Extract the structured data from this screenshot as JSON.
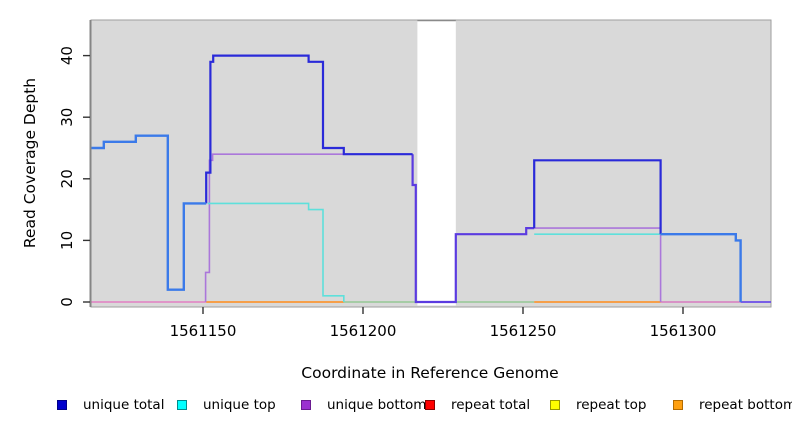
{
  "chart_data": {
    "type": "step-line",
    "title": "",
    "xlabel": "Coordinate in Reference Genome",
    "ylabel": "Read Coverage Depth",
    "xlim": [
      1561115,
      1561327.5
    ],
    "ylim": [
      0,
      45.8
    ],
    "xticks": [
      1561150,
      1561200,
      1561250,
      1561300
    ],
    "yticks": [
      0,
      10,
      20,
      30,
      40
    ],
    "grid": false,
    "panel_bg": "#d9d9d9",
    "panel_border": "#9e9e9e",
    "masked_region": {
      "from": 1561217,
      "to": 1561229,
      "color": "#ffffff",
      "cap_color": "#8a8a8a"
    },
    "legend_position": "bottom",
    "legend": [
      {
        "label": "unique total",
        "color": "#0000cc",
        "border": "#000088"
      },
      {
        "label": "unique top",
        "color": "#00ffff",
        "border": "#008b8b"
      },
      {
        "label": "unique bottom",
        "color": "#9b30d0",
        "border": "#6a1b90"
      },
      {
        "label": "repeat total",
        "color": "#ff0000",
        "border": "#8b0000"
      },
      {
        "label": "repeat top",
        "color": "#ffff00",
        "border": "#999900"
      },
      {
        "label": "repeat bottom",
        "color": "#ffa010",
        "border": "#b36b00"
      }
    ],
    "series": [
      {
        "name": "unique total",
        "steps": [
          [
            1561115,
            25
          ],
          [
            1561119,
            26
          ],
          [
            1561129,
            27
          ],
          [
            1561139,
            2
          ],
          [
            1561144,
            16
          ],
          [
            1561151,
            21
          ],
          [
            1561152,
            39
          ],
          [
            1561153,
            40
          ],
          [
            1561183,
            39
          ],
          [
            1561188,
            25
          ],
          [
            1561194,
            24
          ],
          [
            1561216,
            19
          ],
          [
            1561217,
            0
          ],
          [
            1561229,
            11
          ],
          [
            1561251,
            12
          ],
          [
            1561254,
            23
          ],
          [
            1561293,
            11
          ],
          [
            1561317,
            10
          ],
          [
            1561318,
            0
          ]
        ]
      },
      {
        "name": "unique top",
        "steps": [
          [
            1561115,
            0
          ],
          [
            1561151,
            16
          ],
          [
            1561183,
            15
          ],
          [
            1561188,
            1
          ],
          [
            1561194,
            0
          ],
          [
            1561254,
            11
          ],
          [
            1561318,
            0
          ]
        ]
      },
      {
        "name": "unique bottom",
        "steps": [
          [
            1561115,
            0
          ],
          [
            1561151,
            5
          ],
          [
            1561152,
            23
          ],
          [
            1561153,
            24
          ],
          [
            1561216,
            0
          ],
          [
            1561229,
            11
          ],
          [
            1561251,
            12
          ],
          [
            1561293,
            0
          ]
        ]
      },
      {
        "name": "repeat total",
        "steps": [
          [
            1561115,
            0
          ]
        ]
      },
      {
        "name": "repeat top",
        "steps": [
          [
            1561115,
            0
          ]
        ]
      },
      {
        "name": "repeat bottom",
        "steps": [
          [
            1561115,
            0
          ]
        ]
      }
    ],
    "render": {
      "segments": [
        {
          "name": "baseline-pink-left",
          "color": "#e27fc3",
          "w": 1.6,
          "pts": [
            [
              1561115,
              0
            ],
            [
              1561151,
              0
            ]
          ]
        },
        {
          "name": "baseline-orange-left",
          "color": "#ff8c1a",
          "w": 1.6,
          "pts": [
            [
              1561151,
              0
            ],
            [
              1561194,
              0
            ]
          ]
        },
        {
          "name": "baseline-green-left",
          "color": "#96c896",
          "w": 1.6,
          "pts": [
            [
              1561194,
              0
            ],
            [
              1561217,
              0
            ]
          ]
        },
        {
          "name": "baseline-green-right",
          "color": "#96c896",
          "w": 1.6,
          "pts": [
            [
              1561229,
              0
            ],
            [
              1561253.5,
              0
            ]
          ]
        },
        {
          "name": "baseline-orange-right",
          "color": "#ff8c1a",
          "w": 1.6,
          "pts": [
            [
              1561253.5,
              0
            ],
            [
              1561293,
              0
            ]
          ]
        },
        {
          "name": "baseline-pink-right",
          "color": "#d87ac0",
          "w": 1.6,
          "pts": [
            [
              1561293,
              0
            ],
            [
              1561318,
              0
            ]
          ]
        },
        {
          "name": "baseline-violet-tail",
          "color": "#6a4ce8",
          "w": 1.8,
          "pts": [
            [
              1561318,
              0
            ],
            [
              1561327.5,
              0
            ]
          ]
        },
        {
          "name": "unique-bottom-main",
          "color": "#ab77da",
          "w": 1.6,
          "pts": [
            [
              1561150.8,
              0
            ],
            [
              1561150.8,
              4.8
            ],
            [
              1561152,
              4.8
            ],
            [
              1561152,
              23
            ],
            [
              1561153,
              23
            ],
            [
              1561153,
              24
            ],
            [
              1561215.5,
              24
            ]
          ]
        },
        {
          "name": "unique-bottom-right",
          "color": "#ab77da",
          "w": 1.6,
          "pts": [
            [
              1561253.5,
              12
            ],
            [
              1561293,
              12
            ],
            [
              1561293,
              0
            ]
          ]
        },
        {
          "name": "unique-top-main",
          "color": "#5ee0db",
          "w": 1.6,
          "pts": [
            [
              1561151.5,
              16
            ],
            [
              1561183,
              16
            ],
            [
              1561183,
              15
            ],
            [
              1561187.5,
              15
            ],
            [
              1561187.5,
              1
            ],
            [
              1561194,
              1
            ],
            [
              1561194,
              0
            ]
          ]
        },
        {
          "name": "unique-top-right",
          "color": "#5ee0db",
          "w": 1.6,
          "pts": [
            [
              1561253.5,
              11
            ],
            [
              1561293,
              11
            ]
          ]
        },
        {
          "name": "total-bottom-blend-mid",
          "color": "#5b3be0",
          "w": 2.2,
          "pts": [
            [
              1561215.5,
              24
            ],
            [
              1561215.5,
              19
            ],
            [
              1561216.5,
              19
            ],
            [
              1561216.5,
              0
            ],
            [
              1561229,
              0
            ],
            [
              1561229,
              11
            ],
            [
              1561251,
              11
            ],
            [
              1561251,
              12
            ],
            [
              1561253.5,
              12
            ]
          ]
        },
        {
          "name": "unique-total-peak",
          "color": "#2a2ad9",
          "w": 2.2,
          "pts": [
            [
              1561151,
              16
            ],
            [
              1561151,
              21
            ],
            [
              1561152.3,
              21
            ],
            [
              1561152.3,
              39
            ],
            [
              1561153.2,
              39
            ],
            [
              1561153.2,
              40
            ],
            [
              1561183,
              40
            ],
            [
              1561183,
              39
            ],
            [
              1561187.5,
              39
            ],
            [
              1561187.5,
              25
            ],
            [
              1561194,
              25
            ],
            [
              1561194,
              24
            ],
            [
              1561215.5,
              24
            ]
          ]
        },
        {
          "name": "unique-total-right",
          "color": "#2a2ad9",
          "w": 2.2,
          "pts": [
            [
              1561253.5,
              12
            ],
            [
              1561253.5,
              23
            ],
            [
              1561293,
              23
            ],
            [
              1561293,
              11
            ]
          ]
        },
        {
          "name": "total-top-blend-left",
          "color": "#3b7ae9",
          "w": 2.4,
          "pts": [
            [
              1561115,
              25
            ],
            [
              1561119,
              25
            ],
            [
              1561119,
              26
            ],
            [
              1561129,
              26
            ],
            [
              1561129,
              27
            ],
            [
              1561139,
              27
            ],
            [
              1561139,
              2
            ],
            [
              1561144,
              2
            ],
            [
              1561144,
              16
            ],
            [
              1561151,
              16
            ]
          ]
        },
        {
          "name": "total-top-blend-right",
          "color": "#3b7ae9",
          "w": 2.4,
          "pts": [
            [
              1561293,
              11
            ],
            [
              1561316.5,
              11
            ],
            [
              1561316.5,
              10
            ],
            [
              1561318,
              10
            ],
            [
              1561318,
              0
            ]
          ]
        }
      ]
    }
  }
}
